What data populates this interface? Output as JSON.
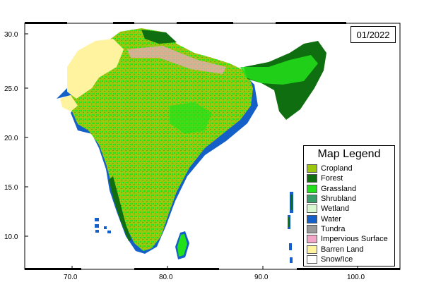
{
  "date": "01/2022",
  "legend": {
    "title": "Map Legend",
    "items": [
      {
        "label": "Cropland",
        "color": "#9bc80f"
      },
      {
        "label": "Forest",
        "color": "#0f6e0f"
      },
      {
        "label": "Grassland",
        "color": "#22e01a"
      },
      {
        "label": "Shrubland",
        "color": "#3a9e6a"
      },
      {
        "label": "Wetland",
        "color": "#d8f8d0"
      },
      {
        "label": "Water",
        "color": "#1560c8"
      },
      {
        "label": "Tundra",
        "color": "#999999"
      },
      {
        "label": "Impervious Surface",
        "color": "#f4a6c8"
      },
      {
        "label": "Barren Land",
        "color": "#fff3a0"
      },
      {
        "label": "Snow/Ice",
        "color": "#ffffff"
      }
    ]
  },
  "axes": {
    "x_ticks": [
      "70.0",
      "80.0",
      "90.0",
      "100.0"
    ],
    "y_ticks": [
      "30.0",
      "25.0",
      "20.0",
      "15.0",
      "10.0"
    ]
  },
  "colors": {
    "cropland": "#9bc80f",
    "forest": "#0f6e0f",
    "grassland": "#22e01a",
    "water": "#1560c8",
    "barren": "#fff3a0",
    "impervious": "#f4a6c8"
  }
}
